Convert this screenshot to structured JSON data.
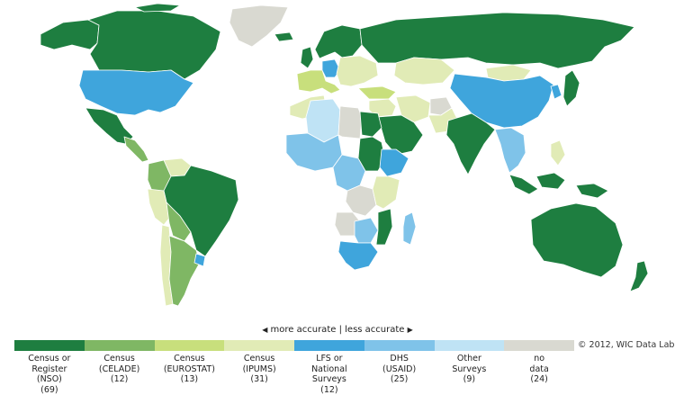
{
  "accuracy": {
    "left": "more accurate",
    "separator": "|",
    "right": "less accurate"
  },
  "credit": "© 2012, WIC Data Lab",
  "legend": [
    {
      "line1": "Census or Register",
      "line2": "(NSO)",
      "count": "(69)",
      "color": "#1e7e40"
    },
    {
      "line1": "Census",
      "line2": "(CELADE)",
      "count": "(12)",
      "color": "#7fb764"
    },
    {
      "line1": "Census",
      "line2": "(EUROSTAT)",
      "count": "(13)",
      "color": "#c8df7c"
    },
    {
      "line1": "Census",
      "line2": "(IPUMS)",
      "count": "(31)",
      "color": "#e1ebb6"
    },
    {
      "line1": "LFS or",
      "line2": "National Surveys",
      "count": "(12)",
      "color": "#3fa5dc"
    },
    {
      "line1": "DHS",
      "line2": "(USAID)",
      "count": "(25)",
      "color": "#7fc3e9"
    },
    {
      "line1": "Other",
      "line2": "Surveys",
      "count": "(9)",
      "color": "#bfe3f5"
    },
    {
      "line1": "no",
      "line2": "data",
      "count": "(24)",
      "color": "#d9d9d1"
    }
  ],
  "regions": [
    {
      "id": "alaska",
      "category": "Census or Register (NSO)"
    },
    {
      "id": "canada",
      "category": "Census or Register (NSO)"
    },
    {
      "id": "greenland",
      "category": "no data"
    },
    {
      "id": "usa",
      "category": "LFS or National Surveys"
    },
    {
      "id": "mexico",
      "category": "Census or Register (NSO)"
    },
    {
      "id": "central-america",
      "category": "Census (CELADE)"
    },
    {
      "id": "brazil",
      "category": "Census or Register (NSO)"
    },
    {
      "id": "colombia",
      "category": "Census (CELADE)"
    },
    {
      "id": "venezuela",
      "category": "Census (IPUMS)"
    },
    {
      "id": "peru",
      "category": "Census (IPUMS)"
    },
    {
      "id": "bolivia",
      "category": "Census (CELADE)"
    },
    {
      "id": "argentina",
      "category": "Census (CELADE)"
    },
    {
      "id": "chile",
      "category": "Census (IPUMS)"
    },
    {
      "id": "uruguay",
      "category": "LFS or National Surveys"
    },
    {
      "id": "iceland",
      "category": "Census or Register (NSO)"
    },
    {
      "id": "uk",
      "category": "Census or Register (NSO)"
    },
    {
      "id": "scandinavia",
      "category": "Census or Register (NSO)"
    },
    {
      "id": "germany",
      "category": "LFS or National Surveys"
    },
    {
      "id": "western-europe",
      "category": "Census (EUROSTAT)"
    },
    {
      "id": "eastern-europe",
      "category": "Census (IPUMS)"
    },
    {
      "id": "turkey",
      "category": "Census (EUROSTAT)"
    },
    {
      "id": "russia",
      "category": "Census or Register (NSO)"
    },
    {
      "id": "kazakhstan",
      "category": "Census (IPUMS)"
    },
    {
      "id": "mongolia",
      "category": "Census (IPUMS)"
    },
    {
      "id": "china",
      "category": "LFS or National Surveys"
    },
    {
      "id": "japan",
      "category": "Census or Register (NSO)"
    },
    {
      "id": "korea",
      "category": "LFS or National Surveys"
    },
    {
      "id": "middle-east",
      "category": "Census (IPUMS)"
    },
    {
      "id": "saudi-arabia",
      "category": "Census or Register (NSO)"
    },
    {
      "id": "iran",
      "category": "Census (IPUMS)"
    },
    {
      "id": "afghanistan",
      "category": "no data"
    },
    {
      "id": "pakistan",
      "category": "Census (IPUMS)"
    },
    {
      "id": "india",
      "category": "Census or Register (NSO)"
    },
    {
      "id": "southeast-asia",
      "category": "DHS (USAID)"
    },
    {
      "id": "indonesia",
      "category": "Census or Register (NSO)"
    },
    {
      "id": "philippines",
      "category": "Census (IPUMS)"
    },
    {
      "id": "australia",
      "category": "Census or Register (NSO)"
    },
    {
      "id": "new-zealand",
      "category": "Census or Register (NSO)"
    },
    {
      "id": "north-africa",
      "category": "Census (IPUMS)"
    },
    {
      "id": "algeria",
      "category": "Other Surveys"
    },
    {
      "id": "libya",
      "category": "no data"
    },
    {
      "id": "egypt",
      "category": "Census or Register (NSO)"
    },
    {
      "id": "west-africa",
      "category": "DHS (USAID)"
    },
    {
      "id": "sudan",
      "category": "Census or Register (NSO)"
    },
    {
      "id": "ethiopia",
      "category": "LFS or National Surveys"
    },
    {
      "id": "central-africa",
      "category": "DHS (USAID)"
    },
    {
      "id": "kenya-tanzania",
      "category": "Census (IPUMS)"
    },
    {
      "id": "dr-congo",
      "category": "no data"
    },
    {
      "id": "angola",
      "category": "no data"
    },
    {
      "id": "southern-africa",
      "category": "DHS (USAID)"
    },
    {
      "id": "mozambique",
      "category": "Census or Register (NSO)"
    },
    {
      "id": "south-africa",
      "category": "LFS or National Surveys"
    },
    {
      "id": "madagascar",
      "category": "DHS (USAID)"
    }
  ]
}
